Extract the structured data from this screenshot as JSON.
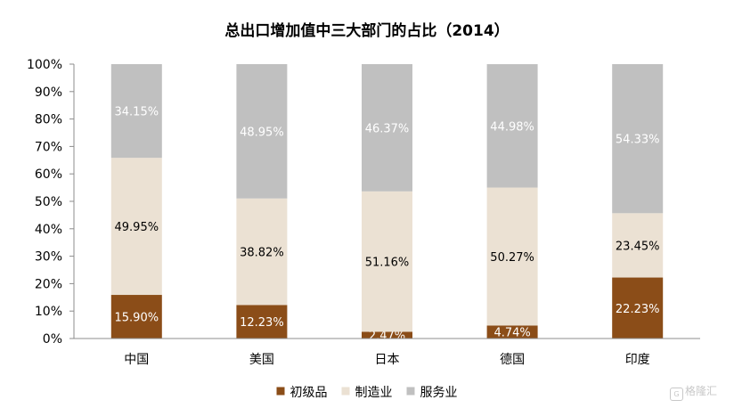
{
  "chart_data": {
    "type": "bar",
    "stacked": true,
    "percent": true,
    "title": "总出口增加值中三大部门的占比（2014）",
    "categories": [
      "中国",
      "美国",
      "日本",
      "德国",
      "印度"
    ],
    "series": [
      {
        "name": "初级品",
        "color": "#8b4d18",
        "label_color": "#ffffff",
        "values": [
          15.9,
          12.23,
          2.47,
          4.74,
          22.23
        ],
        "labels": [
          "15.90%",
          "12.23%",
          "2.47%",
          "4.74%",
          "22.23%"
        ]
      },
      {
        "name": "制造业",
        "color": "#ebe1d3",
        "label_color": "#000000",
        "values": [
          49.95,
          38.82,
          51.16,
          50.27,
          23.45
        ],
        "labels": [
          "49.95%",
          "38.82%",
          "51.16%",
          "50.27%",
          "23.45%"
        ]
      },
      {
        "name": "服务业",
        "color": "#c0c0c0",
        "label_color": "#ffffff",
        "values": [
          34.15,
          48.95,
          46.37,
          44.98,
          54.33
        ],
        "labels": [
          "34.15%",
          "48.95%",
          "46.37%",
          "44.98%",
          "54.33%"
        ]
      }
    ],
    "y_ticks": [
      "0%",
      "10%",
      "20%",
      "30%",
      "40%",
      "50%",
      "60%",
      "70%",
      "80%",
      "90%",
      "100%"
    ],
    "ylim": [
      0,
      100
    ],
    "grid": false,
    "legend_position": "bottom"
  },
  "watermark": {
    "icon": "G",
    "text": "格隆汇"
  }
}
